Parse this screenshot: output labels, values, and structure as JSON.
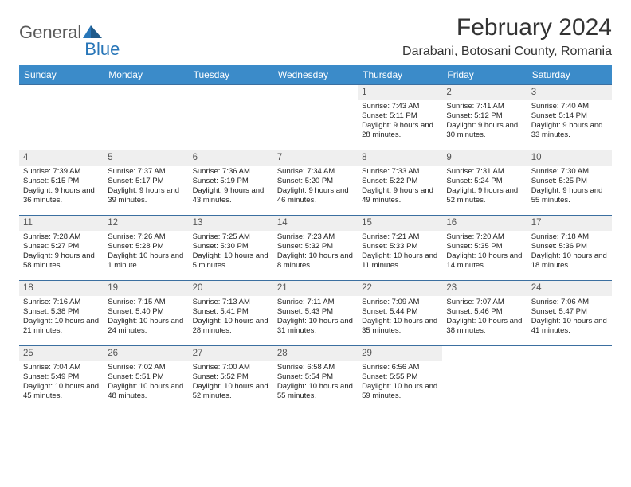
{
  "logo": {
    "text1": "General",
    "text2": "Blue"
  },
  "title": "February 2024",
  "location": "Darabani, Botosani County, Romania",
  "colors": {
    "header_bg": "#3b8bc9",
    "border": "#3b6fa0",
    "logo_blue": "#2876b8",
    "logo_gray": "#5a5a5a",
    "daynum_bg": "#efefef"
  },
  "day_headers": [
    "Sunday",
    "Monday",
    "Tuesday",
    "Wednesday",
    "Thursday",
    "Friday",
    "Saturday"
  ],
  "weeks": [
    [
      {
        "n": "",
        "sr": "",
        "ss": "",
        "dl": ""
      },
      {
        "n": "",
        "sr": "",
        "ss": "",
        "dl": ""
      },
      {
        "n": "",
        "sr": "",
        "ss": "",
        "dl": ""
      },
      {
        "n": "",
        "sr": "",
        "ss": "",
        "dl": ""
      },
      {
        "n": "1",
        "sr": "Sunrise: 7:43 AM",
        "ss": "Sunset: 5:11 PM",
        "dl": "Daylight: 9 hours and 28 minutes."
      },
      {
        "n": "2",
        "sr": "Sunrise: 7:41 AM",
        "ss": "Sunset: 5:12 PM",
        "dl": "Daylight: 9 hours and 30 minutes."
      },
      {
        "n": "3",
        "sr": "Sunrise: 7:40 AM",
        "ss": "Sunset: 5:14 PM",
        "dl": "Daylight: 9 hours and 33 minutes."
      }
    ],
    [
      {
        "n": "4",
        "sr": "Sunrise: 7:39 AM",
        "ss": "Sunset: 5:15 PM",
        "dl": "Daylight: 9 hours and 36 minutes."
      },
      {
        "n": "5",
        "sr": "Sunrise: 7:37 AM",
        "ss": "Sunset: 5:17 PM",
        "dl": "Daylight: 9 hours and 39 minutes."
      },
      {
        "n": "6",
        "sr": "Sunrise: 7:36 AM",
        "ss": "Sunset: 5:19 PM",
        "dl": "Daylight: 9 hours and 43 minutes."
      },
      {
        "n": "7",
        "sr": "Sunrise: 7:34 AM",
        "ss": "Sunset: 5:20 PM",
        "dl": "Daylight: 9 hours and 46 minutes."
      },
      {
        "n": "8",
        "sr": "Sunrise: 7:33 AM",
        "ss": "Sunset: 5:22 PM",
        "dl": "Daylight: 9 hours and 49 minutes."
      },
      {
        "n": "9",
        "sr": "Sunrise: 7:31 AM",
        "ss": "Sunset: 5:24 PM",
        "dl": "Daylight: 9 hours and 52 minutes."
      },
      {
        "n": "10",
        "sr": "Sunrise: 7:30 AM",
        "ss": "Sunset: 5:25 PM",
        "dl": "Daylight: 9 hours and 55 minutes."
      }
    ],
    [
      {
        "n": "11",
        "sr": "Sunrise: 7:28 AM",
        "ss": "Sunset: 5:27 PM",
        "dl": "Daylight: 9 hours and 58 minutes."
      },
      {
        "n": "12",
        "sr": "Sunrise: 7:26 AM",
        "ss": "Sunset: 5:28 PM",
        "dl": "Daylight: 10 hours and 1 minute."
      },
      {
        "n": "13",
        "sr": "Sunrise: 7:25 AM",
        "ss": "Sunset: 5:30 PM",
        "dl": "Daylight: 10 hours and 5 minutes."
      },
      {
        "n": "14",
        "sr": "Sunrise: 7:23 AM",
        "ss": "Sunset: 5:32 PM",
        "dl": "Daylight: 10 hours and 8 minutes."
      },
      {
        "n": "15",
        "sr": "Sunrise: 7:21 AM",
        "ss": "Sunset: 5:33 PM",
        "dl": "Daylight: 10 hours and 11 minutes."
      },
      {
        "n": "16",
        "sr": "Sunrise: 7:20 AM",
        "ss": "Sunset: 5:35 PM",
        "dl": "Daylight: 10 hours and 14 minutes."
      },
      {
        "n": "17",
        "sr": "Sunrise: 7:18 AM",
        "ss": "Sunset: 5:36 PM",
        "dl": "Daylight: 10 hours and 18 minutes."
      }
    ],
    [
      {
        "n": "18",
        "sr": "Sunrise: 7:16 AM",
        "ss": "Sunset: 5:38 PM",
        "dl": "Daylight: 10 hours and 21 minutes."
      },
      {
        "n": "19",
        "sr": "Sunrise: 7:15 AM",
        "ss": "Sunset: 5:40 PM",
        "dl": "Daylight: 10 hours and 24 minutes."
      },
      {
        "n": "20",
        "sr": "Sunrise: 7:13 AM",
        "ss": "Sunset: 5:41 PM",
        "dl": "Daylight: 10 hours and 28 minutes."
      },
      {
        "n": "21",
        "sr": "Sunrise: 7:11 AM",
        "ss": "Sunset: 5:43 PM",
        "dl": "Daylight: 10 hours and 31 minutes."
      },
      {
        "n": "22",
        "sr": "Sunrise: 7:09 AM",
        "ss": "Sunset: 5:44 PM",
        "dl": "Daylight: 10 hours and 35 minutes."
      },
      {
        "n": "23",
        "sr": "Sunrise: 7:07 AM",
        "ss": "Sunset: 5:46 PM",
        "dl": "Daylight: 10 hours and 38 minutes."
      },
      {
        "n": "24",
        "sr": "Sunrise: 7:06 AM",
        "ss": "Sunset: 5:47 PM",
        "dl": "Daylight: 10 hours and 41 minutes."
      }
    ],
    [
      {
        "n": "25",
        "sr": "Sunrise: 7:04 AM",
        "ss": "Sunset: 5:49 PM",
        "dl": "Daylight: 10 hours and 45 minutes."
      },
      {
        "n": "26",
        "sr": "Sunrise: 7:02 AM",
        "ss": "Sunset: 5:51 PM",
        "dl": "Daylight: 10 hours and 48 minutes."
      },
      {
        "n": "27",
        "sr": "Sunrise: 7:00 AM",
        "ss": "Sunset: 5:52 PM",
        "dl": "Daylight: 10 hours and 52 minutes."
      },
      {
        "n": "28",
        "sr": "Sunrise: 6:58 AM",
        "ss": "Sunset: 5:54 PM",
        "dl": "Daylight: 10 hours and 55 minutes."
      },
      {
        "n": "29",
        "sr": "Sunrise: 6:56 AM",
        "ss": "Sunset: 5:55 PM",
        "dl": "Daylight: 10 hours and 59 minutes."
      },
      {
        "n": "",
        "sr": "",
        "ss": "",
        "dl": ""
      },
      {
        "n": "",
        "sr": "",
        "ss": "",
        "dl": ""
      }
    ]
  ]
}
